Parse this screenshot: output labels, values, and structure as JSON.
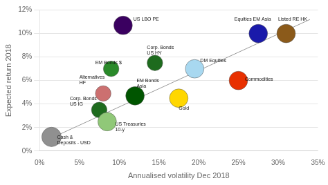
{
  "chart_data": {
    "type": "bubble",
    "x_label": "Annualised volatility Dec 2018",
    "y_label": "Expected return 2018",
    "points": [
      {
        "name": "Cash &\nDeposits - USD",
        "x": 1.5,
        "y": 1.2,
        "size": 2200,
        "color": "#909090",
        "label_at": [
          2.2,
          0.5
        ]
      },
      {
        "name": "Corp. Bonds\nUS IG",
        "x": 7.5,
        "y": 3.5,
        "size": 1400,
        "color": "#1e6b1e",
        "label_at": [
          3.8,
          3.8
        ]
      },
      {
        "name": "US Treasuries\n10-y",
        "x": 8.5,
        "y": 2.5,
        "size": 2000,
        "color": "#90c878",
        "label_at": [
          9.5,
          1.6
        ]
      },
      {
        "name": "Alternatives\nHF",
        "x": 8.0,
        "y": 4.9,
        "size": 1400,
        "color": "#cc7070",
        "label_at": [
          5.0,
          5.6
        ]
      },
      {
        "name": "EM Bonds $",
        "x": 9.0,
        "y": 7.0,
        "size": 1400,
        "color": "#2a8a2a",
        "label_at": [
          7.0,
          7.3
        ]
      },
      {
        "name": "EM Bonds\nAsia",
        "x": 12.0,
        "y": 4.7,
        "size": 2000,
        "color": "#005500",
        "label_at": [
          12.2,
          5.3
        ]
      },
      {
        "name": "US LBO PE",
        "x": 10.5,
        "y": 10.7,
        "size": 2000,
        "color": "#3a0060",
        "label_at": [
          11.8,
          11.0
        ]
      },
      {
        "name": "Corp. Bonds\nUS HY",
        "x": 14.5,
        "y": 7.5,
        "size": 1400,
        "color": "#1e6b1e",
        "label_at": [
          13.5,
          8.1
        ]
      },
      {
        "name": "Gold",
        "x": 17.5,
        "y": 4.5,
        "size": 2000,
        "color": "#FFD700",
        "label_at": [
          17.5,
          3.4
        ]
      },
      {
        "name": "DM Equities",
        "x": 19.5,
        "y": 7.0,
        "size": 2000,
        "color": "#a8d8f0",
        "label_at": [
          20.2,
          7.5
        ]
      },
      {
        "name": "Commodities",
        "x": 25.0,
        "y": 6.0,
        "size": 2000,
        "color": "#e83000",
        "label_at": [
          25.8,
          5.9
        ]
      },
      {
        "name": "Equities EM Asia",
        "x": 27.5,
        "y": 10.0,
        "size": 2000,
        "color": "#1a1aaa",
        "label_at": [
          24.5,
          11.0
        ]
      },
      {
        "name": "Listed RE HK",
        "x": 31.0,
        "y": 10.0,
        "size": 2000,
        "color": "#8B5A1A",
        "label_at": [
          30.0,
          11.0
        ]
      }
    ],
    "trendline": {
      "x": [
        0.5,
        34
      ],
      "y": [
        0.8,
        11.2
      ],
      "color": "#999999"
    },
    "xlim": [
      0,
      35
    ],
    "ylim": [
      0,
      12
    ],
    "xticks": [
      {
        "value": 0,
        "label": "0%"
      },
      {
        "value": 5,
        "label": "5%"
      },
      {
        "value": 10,
        "label": "10%"
      },
      {
        "value": 15,
        "label": "15%"
      },
      {
        "value": 20,
        "label": "20%"
      },
      {
        "value": 25,
        "label": "25%"
      },
      {
        "value": 30,
        "label": "30%"
      },
      {
        "value": 35,
        "label": "35%"
      }
    ],
    "yticks": [
      {
        "value": 0,
        "label": "0%"
      },
      {
        "value": 2,
        "label": "2%"
      },
      {
        "value": 4,
        "label": "4%"
      },
      {
        "value": 6,
        "label": "6%"
      },
      {
        "value": 8,
        "label": "8%"
      },
      {
        "value": 10,
        "label": "10%"
      },
      {
        "value": 12,
        "label": "12%"
      }
    ],
    "grid": "y"
  }
}
